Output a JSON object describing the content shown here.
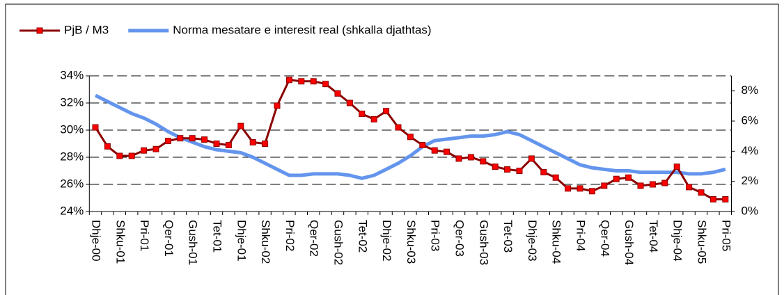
{
  "chart_data": {
    "type": "line",
    "categories": [
      "Dhje-00",
      null,
      "Shku-01",
      null,
      "Pri-01",
      null,
      "Qer-01",
      null,
      "Gush-01",
      null,
      "Tet-01",
      null,
      "Dhje-01",
      null,
      "Shku-02",
      null,
      "Pri-02",
      null,
      "Qer-02",
      null,
      "Gush-02",
      null,
      "Tet-02",
      null,
      "Dhje-02",
      null,
      "Shku-03",
      null,
      "Pri-03",
      null,
      "Qer-03",
      null,
      "Gush-03",
      null,
      "Tet-03",
      null,
      "Dhje-03",
      null,
      "Shku-04",
      null,
      "Pri-04",
      null,
      "Qer-04",
      null,
      "Gush-04",
      null,
      "Tet-04",
      null,
      "Dhje-04",
      null,
      "Shku-05",
      null,
      "Pri-05"
    ],
    "series": [
      {
        "name": "PjB / M3",
        "color": "#8b0000",
        "marker_color": "#ff0000",
        "axis": "y",
        "values": [
          30.2,
          28.8,
          28.1,
          28.1,
          28.5,
          28.6,
          29.2,
          29.4,
          29.4,
          29.3,
          29.0,
          28.9,
          30.3,
          29.1,
          29.0,
          31.8,
          33.7,
          33.6,
          33.6,
          33.4,
          32.7,
          32.0,
          31.2,
          30.8,
          31.4,
          30.2,
          29.5,
          28.9,
          28.5,
          28.4,
          27.9,
          28.0,
          27.7,
          27.3,
          27.1,
          27.0,
          27.9,
          26.9,
          26.5,
          25.7,
          25.7,
          25.5,
          25.9,
          26.4,
          26.5,
          25.9,
          26.0,
          26.1,
          27.3,
          25.8,
          25.4,
          24.9,
          24.9
        ]
      },
      {
        "name": "Norma mesatare e interesit real (shkalla djathtas)",
        "color": "#6495ed",
        "axis": "y2",
        "values": [
          7.7,
          7.3,
          6.9,
          6.5,
          6.2,
          5.8,
          5.3,
          4.9,
          4.6,
          4.3,
          4.1,
          4.0,
          3.9,
          3.6,
          3.2,
          2.8,
          2.4,
          2.4,
          2.5,
          2.5,
          2.5,
          2.4,
          2.2,
          2.4,
          2.8,
          3.2,
          3.7,
          4.3,
          4.7,
          4.8,
          4.9,
          5.0,
          5.0,
          5.1,
          5.3,
          5.1,
          4.7,
          4.3,
          3.9,
          3.5,
          3.1,
          2.9,
          2.8,
          2.7,
          2.7,
          2.6,
          2.6,
          2.6,
          2.6,
          2.5,
          2.5,
          2.6,
          2.8
        ]
      }
    ],
    "ylim": [
      24,
      34
    ],
    "yticks": [
      {
        "value": 24,
        "label": "24%"
      },
      {
        "value": 26,
        "label": "26%"
      },
      {
        "value": 28,
        "label": "28%"
      },
      {
        "value": 30,
        "label": "30%"
      },
      {
        "value": 32,
        "label": "32%"
      },
      {
        "value": 34,
        "label": "34%"
      }
    ],
    "y2lim": [
      0,
      9
    ],
    "y2ticks": [
      {
        "value": 0,
        "label": "0%"
      },
      {
        "value": 2,
        "label": "2%"
      },
      {
        "value": 4,
        "label": "4%"
      },
      {
        "value": 6,
        "label": "6%"
      },
      {
        "value": 8,
        "label": "8%"
      }
    ],
    "grid": true,
    "legend": "top"
  }
}
